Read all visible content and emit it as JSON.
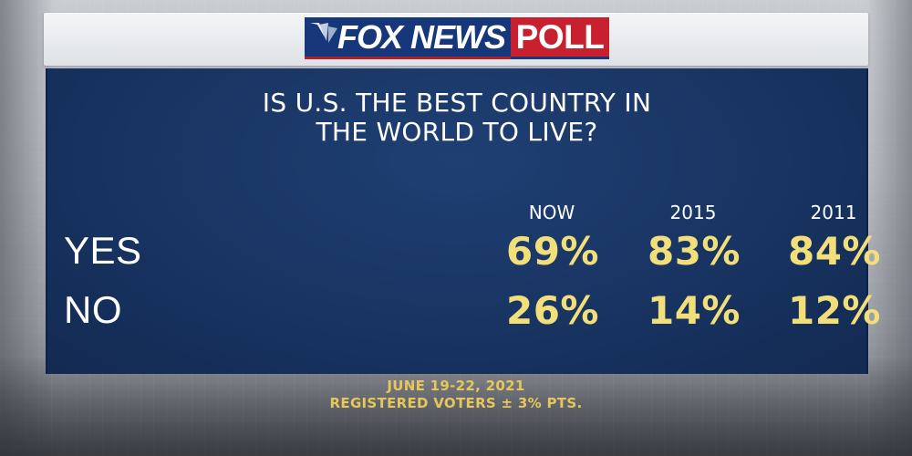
{
  "brand": {
    "logo_main": "FOX NEWS",
    "logo_poll": "POLL",
    "colors": {
      "navy": "#16387a",
      "red": "#c8202f",
      "panel": "#183462",
      "gold": "#f3df7a"
    }
  },
  "question": {
    "line1": "IS U.S. THE BEST COUNTRY IN",
    "line2": "THE WORLD TO LIVE?"
  },
  "table": {
    "columns": [
      "NOW",
      "2015",
      "2011"
    ],
    "rows": [
      {
        "label": "YES",
        "values": [
          "69%",
          "83%",
          "84%"
        ]
      },
      {
        "label": "NO",
        "values": [
          "26%",
          "14%",
          "12%"
        ]
      }
    ]
  },
  "footer": {
    "dates": "JUNE 19-22, 2021",
    "sample": "REGISTERED VOTERS ± 3% PTS."
  }
}
